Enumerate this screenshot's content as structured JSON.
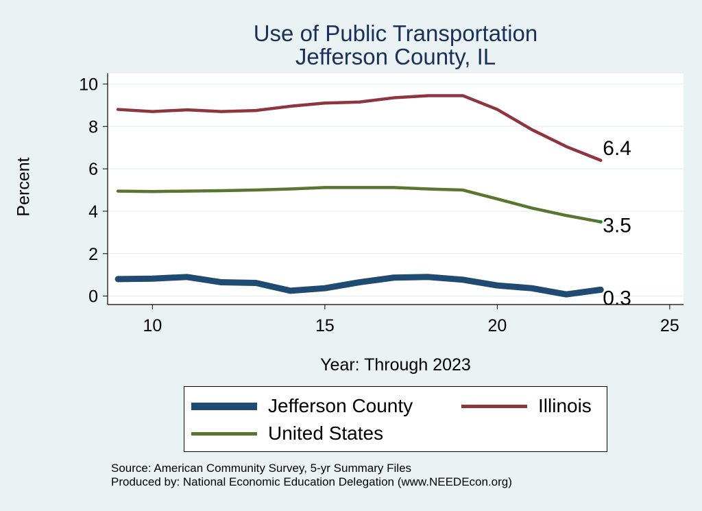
{
  "chart_data": {
    "type": "line",
    "title": "Use of Public Transportation",
    "subtitle": "Jefferson County, IL",
    "xlabel": "Year: Through 2023",
    "ylabel": "Percent",
    "x": [
      9,
      10,
      11,
      12,
      13,
      14,
      15,
      16,
      17,
      18,
      19,
      20,
      21,
      22,
      23
    ],
    "xlim": [
      8.7,
      25.4
    ],
    "ylim": [
      -0.4,
      10.5
    ],
    "xticks": [
      10,
      15,
      20,
      25
    ],
    "yticks": [
      0,
      2,
      4,
      6,
      8,
      10
    ],
    "grid": true,
    "legend_position": "bottom",
    "series": [
      {
        "name": "Jefferson County",
        "color": "#1f4a72",
        "values": [
          0.8,
          0.82,
          0.9,
          0.65,
          0.62,
          0.25,
          0.37,
          0.65,
          0.87,
          0.9,
          0.77,
          0.5,
          0.37,
          0.08,
          0.3
        ],
        "end_label": "0.3"
      },
      {
        "name": "Illinois",
        "color": "#8f353d",
        "values": [
          8.8,
          8.7,
          8.78,
          8.7,
          8.75,
          8.95,
          9.1,
          9.15,
          9.35,
          9.45,
          9.45,
          8.8,
          7.85,
          7.05,
          6.4
        ],
        "end_label": "6.4"
      },
      {
        "name": "United States",
        "color": "#58762f",
        "values": [
          4.95,
          4.93,
          4.95,
          4.97,
          5.0,
          5.05,
          5.12,
          5.12,
          5.12,
          5.05,
          5.0,
          4.58,
          4.15,
          3.8,
          3.5
        ],
        "end_label": "3.5"
      }
    ]
  },
  "notes": {
    "source": "Source: American Community Survey, 5-yr Summary Files",
    "produced": "Produced by: National Economic Education Delegation (www.NEEDEcon.org)"
  }
}
